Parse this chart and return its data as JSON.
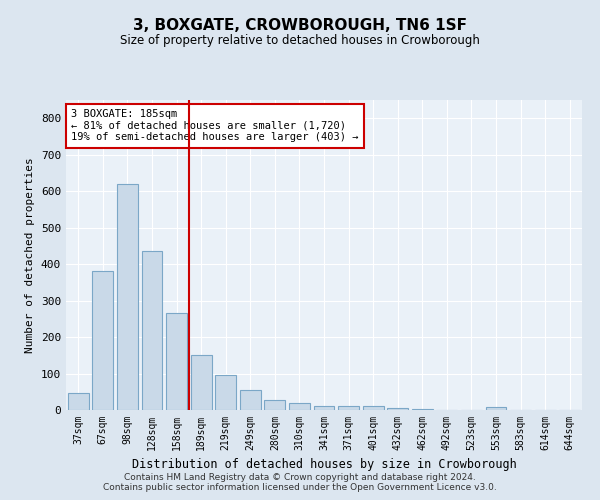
{
  "title": "3, BOXGATE, CROWBOROUGH, TN6 1SF",
  "subtitle": "Size of property relative to detached houses in Crowborough",
  "xlabel": "Distribution of detached houses by size in Crowborough",
  "ylabel": "Number of detached properties",
  "categories": [
    "37sqm",
    "67sqm",
    "98sqm",
    "128sqm",
    "158sqm",
    "189sqm",
    "219sqm",
    "249sqm",
    "280sqm",
    "310sqm",
    "341sqm",
    "371sqm",
    "401sqm",
    "432sqm",
    "462sqm",
    "492sqm",
    "523sqm",
    "553sqm",
    "583sqm",
    "614sqm",
    "644sqm"
  ],
  "values": [
    47,
    381,
    621,
    435,
    265,
    152,
    95,
    55,
    28,
    18,
    10,
    12,
    10,
    5,
    2,
    0,
    0,
    8,
    0,
    0,
    0
  ],
  "bar_color": "#c9d9e8",
  "bar_edge_color": "#7ba7c7",
  "reference_line_label": "3 BOXGATE: 185sqm",
  "annotation_line1": "← 81% of detached houses are smaller (1,720)",
  "annotation_line2": "19% of semi-detached houses are larger (403) →",
  "annotation_box_color": "#ffffff",
  "annotation_box_edge_color": "#cc0000",
  "vline_color": "#cc0000",
  "ylim": [
    0,
    850
  ],
  "yticks": [
    0,
    100,
    200,
    300,
    400,
    500,
    600,
    700,
    800
  ],
  "footer1": "Contains HM Land Registry data © Crown copyright and database right 2024.",
  "footer2": "Contains public sector information licensed under the Open Government Licence v3.0.",
  "bg_color": "#dce6f0",
  "plot_bg_color": "#eaf1f8"
}
